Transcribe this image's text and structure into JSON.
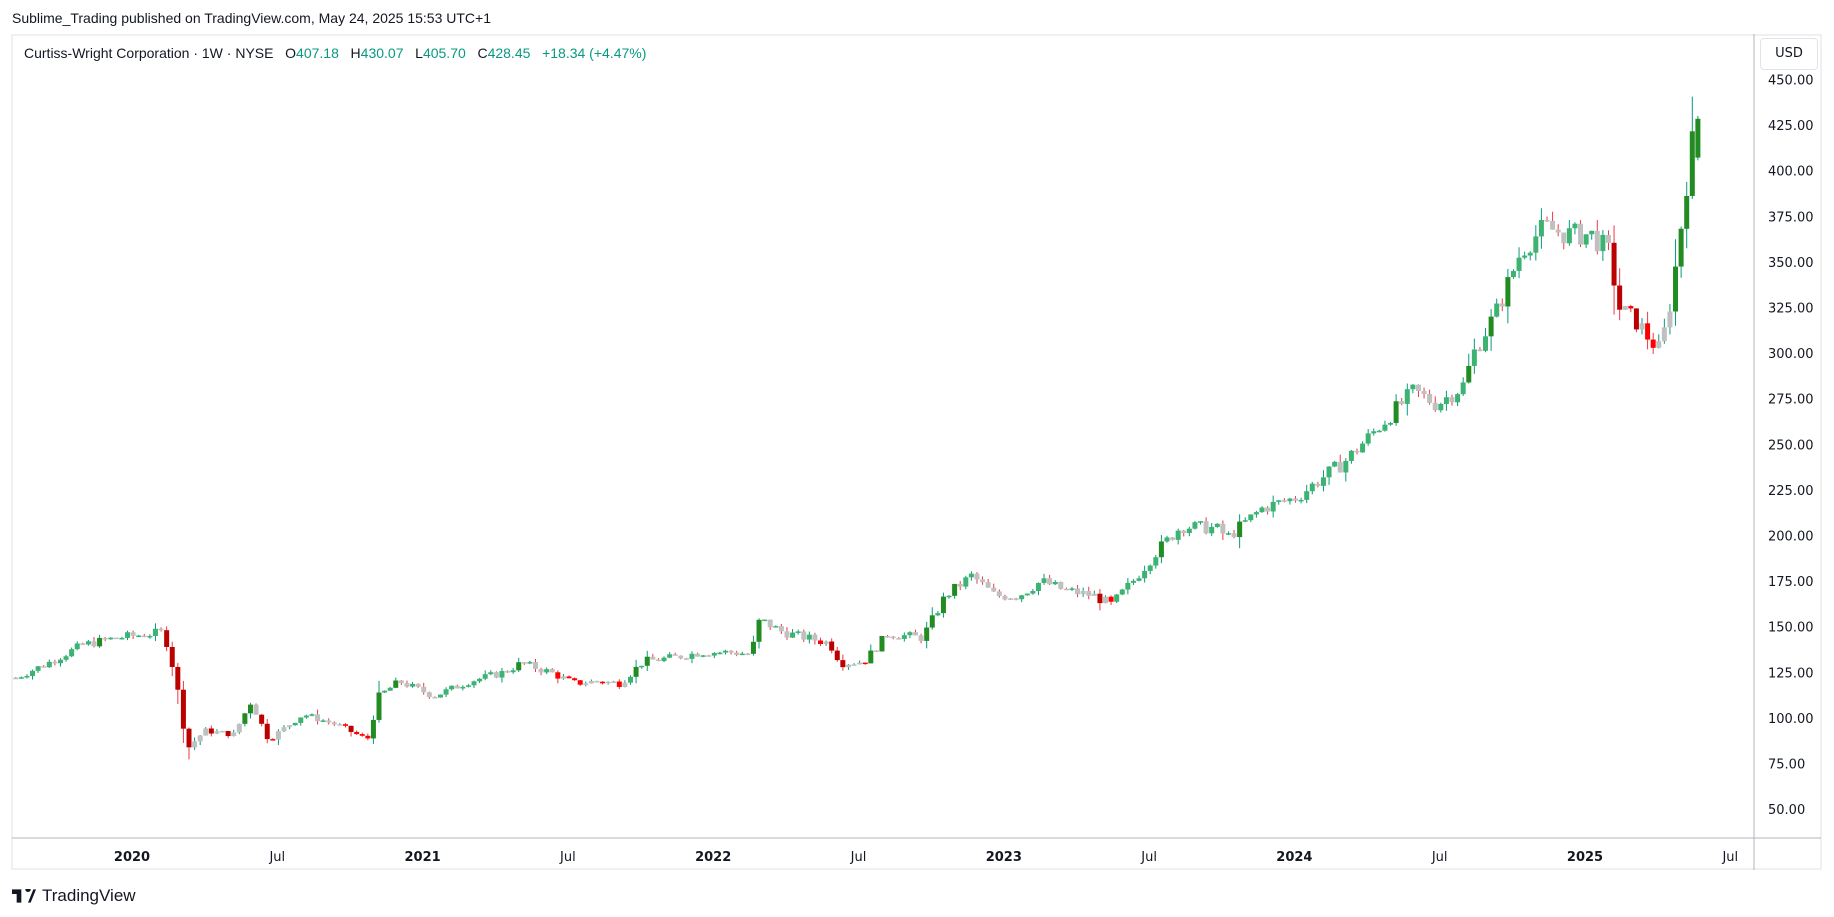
{
  "header": {
    "published": "Sublime_Trading published on TradingView.com, May 24, 2025 15:53 UTC+1"
  },
  "legend": {
    "symbol": "Curtiss-Wright Corporation · 1W · NYSE",
    "o_label": "O",
    "o": "407.18",
    "h_label": "H",
    "h": "430.07",
    "l_label": "L",
    "l": "405.70",
    "c_label": "C",
    "c": "428.45",
    "change": "+18.34 (+4.47%)"
  },
  "currency_button": "USD",
  "footer": {
    "brand": "TradingView"
  },
  "colors": {
    "up_strong": "#228b22",
    "up": "#3cb371",
    "down_strong": "#bb0000",
    "down": "#ff0000",
    "neutral": "#c0c0c0",
    "wick_up": "#089981",
    "wick_down": "#f23645"
  },
  "chart_data": {
    "type": "candlestick",
    "title": "Curtiss-Wright Corporation · 1W · NYSE",
    "interval": "1W",
    "ylim": [
      37.5,
      450
    ],
    "y_ticks": [
      "450.00",
      "425.00",
      "400.00",
      "375.00",
      "350.00",
      "325.00",
      "300.00",
      "275.00",
      "250.00",
      "225.00",
      "200.00",
      "175.00",
      "150.00",
      "125.00",
      "100.00",
      "75.00",
      "50.00"
    ],
    "x_ticks": [
      {
        "label": "2020",
        "t": 2020.0,
        "year": true
      },
      {
        "label": "Jul",
        "t": 2020.5,
        "year": false
      },
      {
        "label": "2021",
        "t": 2021.0,
        "year": true
      },
      {
        "label": "Jul",
        "t": 2021.5,
        "year": false
      },
      {
        "label": "2022",
        "t": 2022.0,
        "year": true
      },
      {
        "label": "Jul",
        "t": 2022.5,
        "year": false
      },
      {
        "label": "2023",
        "t": 2023.0,
        "year": true
      },
      {
        "label": "Jul",
        "t": 2023.5,
        "year": false
      },
      {
        "label": "2024",
        "t": 2024.0,
        "year": true
      },
      {
        "label": "Jul",
        "t": 2024.5,
        "year": false
      },
      {
        "label": "2025",
        "t": 2025.0,
        "year": true
      },
      {
        "label": "Jul",
        "t": 2025.5,
        "year": false
      }
    ],
    "last_candle": {
      "open": 407.18,
      "high": 430.07,
      "low": 405.7,
      "close": 428.45
    },
    "approx_weekly_close_anchors": [
      [
        2019.6,
        122
      ],
      [
        2019.71,
        130
      ],
      [
        2019.83,
        140
      ],
      [
        2019.95,
        144
      ],
      [
        2020.11,
        147
      ],
      [
        2020.15,
        122
      ],
      [
        2020.19,
        83
      ],
      [
        2020.25,
        93
      ],
      [
        2020.35,
        91
      ],
      [
        2020.41,
        109
      ],
      [
        2020.47,
        88
      ],
      [
        2020.59,
        102
      ],
      [
        2020.71,
        96
      ],
      [
        2020.81,
        88
      ],
      [
        2020.85,
        112
      ],
      [
        2020.92,
        120
      ],
      [
        2021.04,
        112
      ],
      [
        2021.16,
        120
      ],
      [
        2021.28,
        125
      ],
      [
        2021.34,
        130
      ],
      [
        2021.44,
        125
      ],
      [
        2021.52,
        119
      ],
      [
        2021.6,
        120
      ],
      [
        2021.68,
        119
      ],
      [
        2021.76,
        131
      ],
      [
        2021.86,
        133
      ],
      [
        2021.96,
        136
      ],
      [
        2022.06,
        136
      ],
      [
        2022.13,
        135
      ],
      [
        2022.16,
        154
      ],
      [
        2022.24,
        147
      ],
      [
        2022.32,
        144
      ],
      [
        2022.4,
        141
      ],
      [
        2022.44,
        130
      ],
      [
        2022.52,
        131
      ],
      [
        2022.6,
        146
      ],
      [
        2022.72,
        144
      ],
      [
        2022.8,
        167
      ],
      [
        2022.89,
        178
      ],
      [
        2022.97,
        167
      ],
      [
        2023.05,
        167
      ],
      [
        2023.13,
        175
      ],
      [
        2023.21,
        170
      ],
      [
        2023.31,
        167
      ],
      [
        2023.37,
        162
      ],
      [
        2023.45,
        176
      ],
      [
        2023.53,
        192
      ],
      [
        2023.61,
        205
      ],
      [
        2023.73,
        204
      ],
      [
        2023.77,
        199
      ],
      [
        2023.89,
        215
      ],
      [
        2024.01,
        221
      ],
      [
        2024.09,
        231
      ],
      [
        2024.17,
        240
      ],
      [
        2024.25,
        253
      ],
      [
        2024.33,
        266
      ],
      [
        2024.41,
        279
      ],
      [
        2024.49,
        272
      ],
      [
        2024.58,
        282
      ],
      [
        2024.62,
        301
      ],
      [
        2024.7,
        324
      ],
      [
        2024.78,
        356
      ],
      [
        2024.86,
        369
      ],
      [
        2024.94,
        365
      ],
      [
        2025.02,
        365
      ],
      [
        2025.08,
        356
      ],
      [
        2025.12,
        324
      ],
      [
        2025.18,
        317
      ],
      [
        2025.22,
        308
      ],
      [
        2025.26,
        301
      ],
      [
        2025.3,
        333
      ],
      [
        2025.34,
        381
      ],
      [
        2025.38,
        428.45
      ]
    ]
  }
}
